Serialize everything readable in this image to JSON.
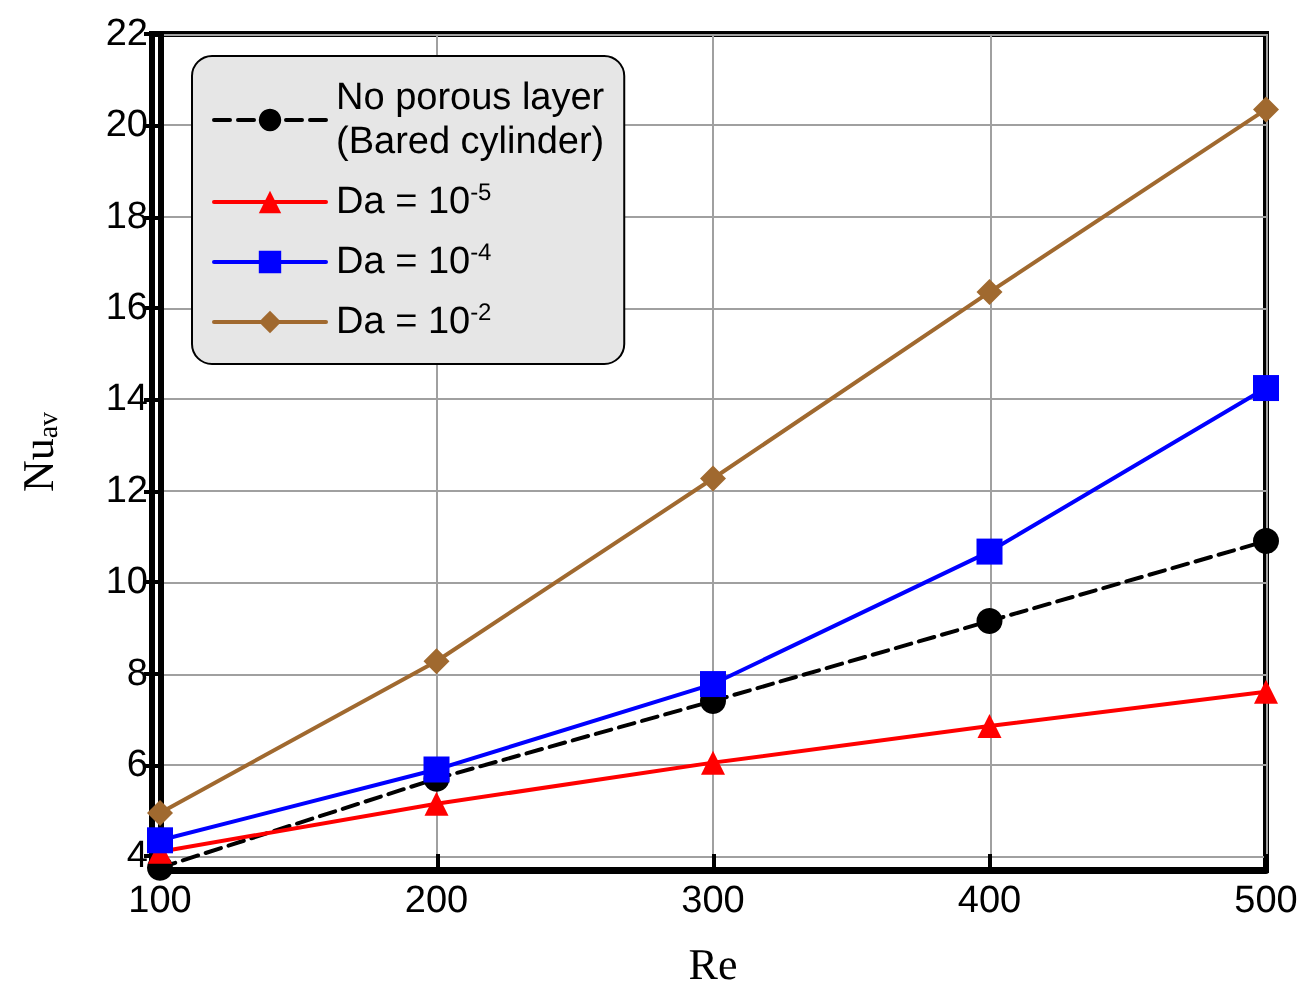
{
  "chart_data": {
    "type": "line",
    "xlabel": "Re",
    "ylabel": "Nu$_{av}$",
    "x": [
      100,
      200,
      300,
      400,
      500
    ],
    "xlim": [
      100,
      500
    ],
    "xticks": [
      100,
      200,
      300,
      400,
      500
    ],
    "ylim": [
      3.7,
      22
    ],
    "yticks": [
      4,
      6,
      8,
      10,
      12,
      14,
      16,
      18,
      20,
      22
    ],
    "grid": true,
    "legend": "top left",
    "series": [
      {
        "name": "No porous layer\n(Bared cylinder)",
        "color": "#000000",
        "marker": "circle",
        "line_style": "dashed",
        "values": [
          3.75,
          5.7,
          7.4,
          9.15,
          10.9
        ]
      },
      {
        "name": "Da = 10$^{-5}$",
        "color": "#ff0000",
        "marker": "triangle",
        "line_style": "solid",
        "values": [
          4.1,
          5.15,
          6.05,
          6.85,
          7.6
        ]
      },
      {
        "name": "Da = 10$^{-4}$",
        "color": "#0000ff",
        "marker": "square",
        "line_style": "solid",
        "values": [
          4.35,
          5.9,
          7.77,
          10.67,
          14.25
        ]
      },
      {
        "name": "Da = 10$^{-2}$",
        "color": "#a0692f",
        "marker": "diamond",
        "line_style": "solid",
        "values": [
          4.95,
          8.27,
          12.27,
          16.35,
          20.35
        ]
      }
    ]
  }
}
